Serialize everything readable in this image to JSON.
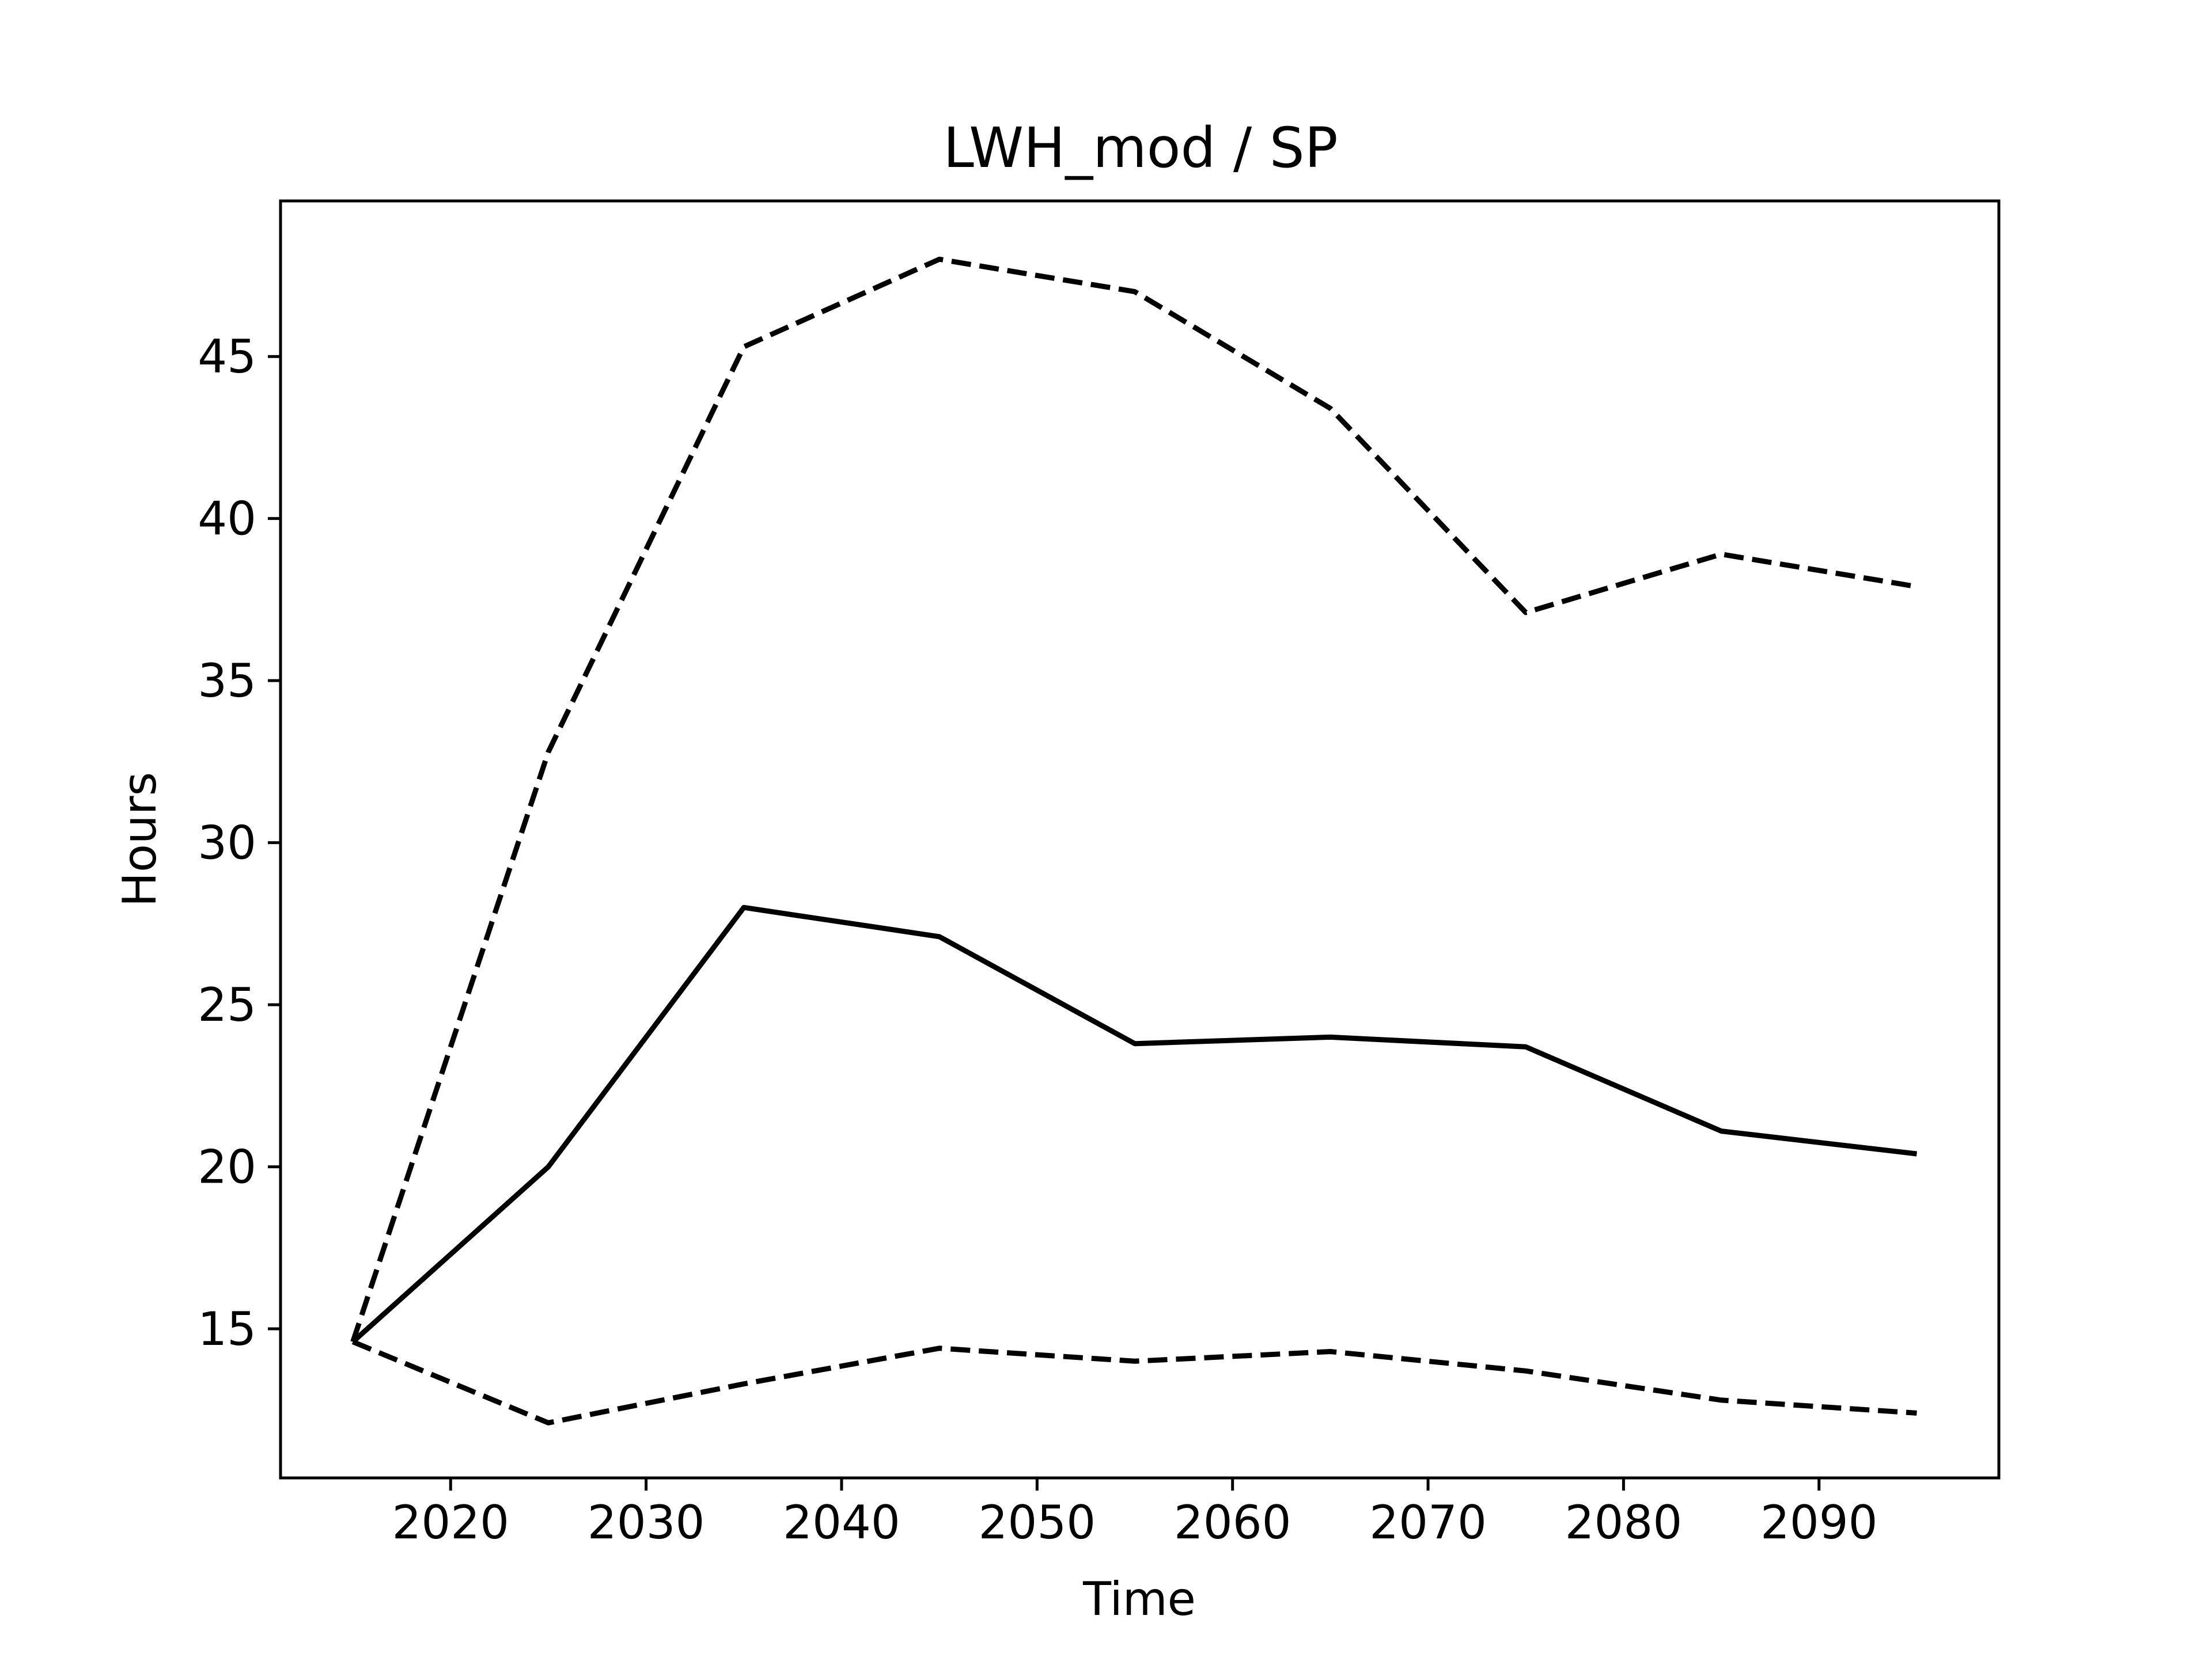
{
  "chart_data": {
    "type": "line",
    "title": "LWH_mod / SP",
    "xlabel": "Time",
    "ylabel": "Hours",
    "xlim": [
      2011.3,
      2099.2
    ],
    "ylim": [
      10.4,
      49.8
    ],
    "xticks": [
      2020,
      2030,
      2040,
      2050,
      2060,
      2070,
      2080,
      2090
    ],
    "yticks": [
      15,
      20,
      25,
      30,
      35,
      40,
      45
    ],
    "grid": false,
    "legend": "none",
    "x": [
      2015,
      2025,
      2035,
      2045,
      2055,
      2065,
      2075,
      2085,
      2095
    ],
    "series": [
      {
        "style": "solid",
        "color": "#000000",
        "values": [
          14.6,
          20.0,
          28.0,
          27.1,
          23.8,
          24.0,
          23.7,
          21.1,
          20.4
        ]
      },
      {
        "style": "dashed",
        "color": "#000000",
        "values": [
          14.6,
          32.8,
          45.3,
          48.0,
          47.0,
          43.4,
          37.1,
          38.9,
          37.9
        ]
      },
      {
        "style": "dashed",
        "color": "#000000",
        "values": [
          14.6,
          12.1,
          13.3,
          14.4,
          14.0,
          14.3,
          13.7,
          12.8,
          12.4
        ]
      }
    ]
  }
}
